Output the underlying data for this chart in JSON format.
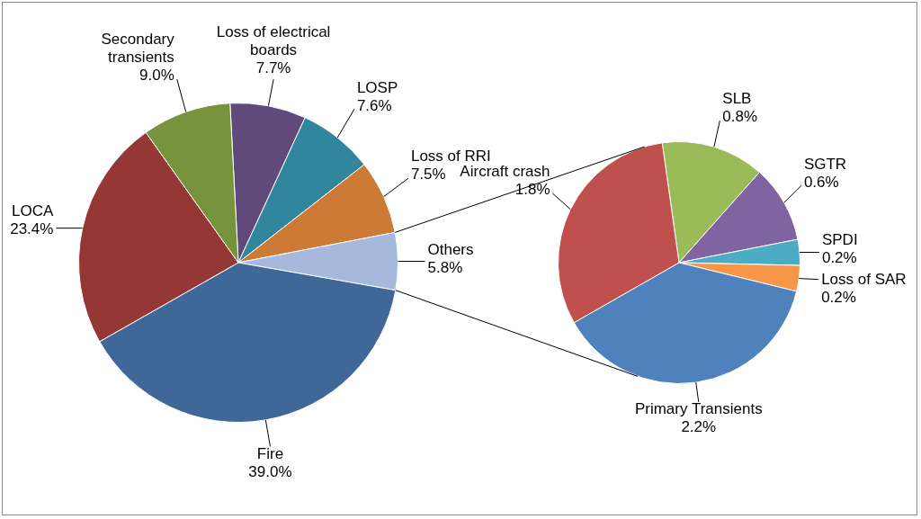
{
  "chart_data": [
    {
      "type": "pie",
      "categories": [
        "Loss of electrical boards",
        "LOSP",
        "Loss of RRI",
        "Others",
        "Fire",
        "LOCA",
        "Secondary transients"
      ],
      "values": [
        7.7,
        7.6,
        7.5,
        5.8,
        39.0,
        23.4,
        9.0
      ],
      "value_labels": [
        "7.7%",
        "7.6%",
        "7.5%",
        "5.8%",
        "39.0%",
        "23.4%",
        "9.0%"
      ],
      "colors": [
        "#604a7b",
        "#31859c",
        "#cc7a35",
        "#a6b9dc",
        "#3f6797",
        "#953735",
        "#77933c"
      ]
    },
    {
      "type": "pie",
      "categories": [
        "SLB",
        "SGTR",
        "SPDI",
        "Loss of SAR",
        "Primary Transients",
        "Aircraft crash"
      ],
      "values": [
        0.8,
        0.6,
        0.2,
        0.2,
        2.2,
        1.8
      ],
      "value_labels": [
        "0.8%",
        "0.6%",
        "0.2%",
        "0.2%",
        "2.2%",
        "1.8%"
      ],
      "colors": [
        "#9bbb59",
        "#8064a2",
        "#4bacc6",
        "#f79646",
        "#4f81bd",
        "#c0504d"
      ]
    }
  ]
}
